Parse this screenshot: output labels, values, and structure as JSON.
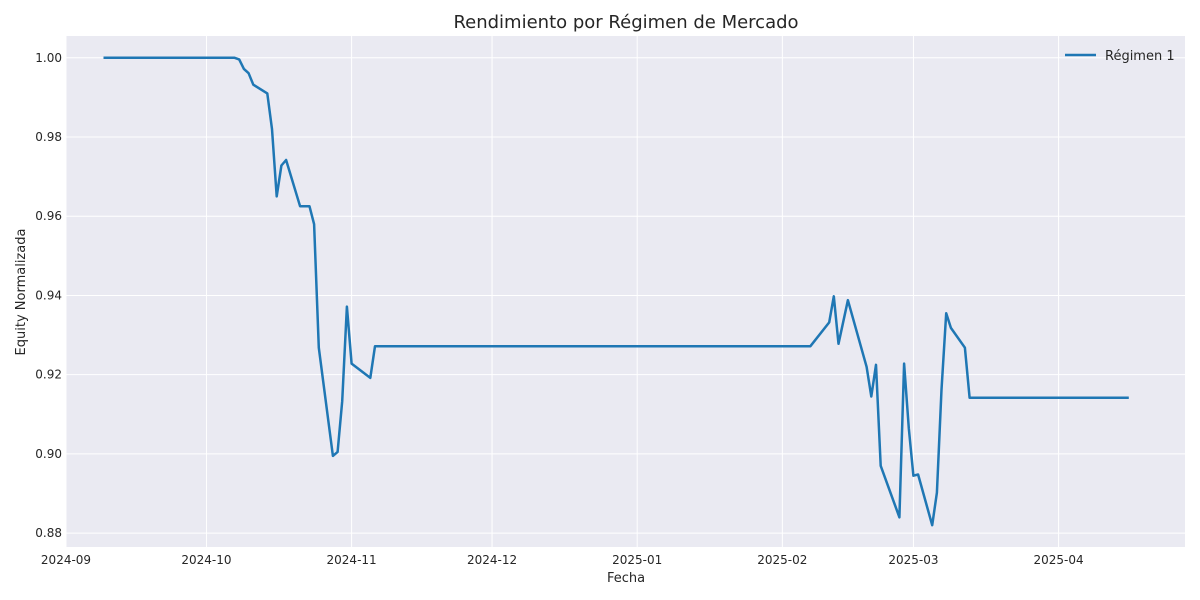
{
  "chart_data": {
    "type": "line",
    "title": "Rendimiento por Régimen de Mercado",
    "xlabel": "Fecha",
    "ylabel": "Equity Normalizada",
    "xlim": [
      "2024-09-01",
      "2025-04-28"
    ],
    "ylim": [
      0.8765,
      1.0055
    ],
    "x_ticks": [
      "2024-09-01",
      "2024-10-01",
      "2024-11-01",
      "2024-12-01",
      "2025-01-01",
      "2025-02-01",
      "2025-03-01",
      "2025-04-01"
    ],
    "x_tick_labels": [
      "2024-09",
      "2024-10",
      "2024-11",
      "2024-12",
      "2025-01",
      "2025-02",
      "2025-03",
      "2025-04"
    ],
    "y_ticks": [
      0.88,
      0.9,
      0.92,
      0.94,
      0.96,
      0.98,
      1.0
    ],
    "y_tick_labels": [
      "0.88",
      "0.90",
      "0.92",
      "0.94",
      "0.96",
      "0.98",
      "1.00"
    ],
    "grid": true,
    "legend_position": "top-right",
    "colors": {
      "background": "#eaeaf2",
      "grid": "#ffffff",
      "series": "#1f77b4"
    },
    "series": [
      {
        "name": "Régimen 1",
        "color": "#1f77b4",
        "points": [
          [
            "2024-09-09",
            1.0
          ],
          [
            "2024-10-07",
            1.0
          ],
          [
            "2024-10-08",
            0.9996
          ],
          [
            "2024-10-09",
            0.9972
          ],
          [
            "2024-10-10",
            0.9961
          ],
          [
            "2024-10-11",
            0.9932
          ],
          [
            "2024-10-14",
            0.991
          ],
          [
            "2024-10-15",
            0.982
          ],
          [
            "2024-10-16",
            0.965
          ],
          [
            "2024-10-17",
            0.9728
          ],
          [
            "2024-10-18",
            0.9742
          ],
          [
            "2024-10-21",
            0.9625
          ],
          [
            "2024-10-23",
            0.9625
          ],
          [
            "2024-10-24",
            0.958
          ],
          [
            "2024-10-25",
            0.9268
          ],
          [
            "2024-10-28",
            0.8995
          ],
          [
            "2024-10-29",
            0.9005
          ],
          [
            "2024-10-30",
            0.9133
          ],
          [
            "2024-10-31",
            0.9372
          ],
          [
            "2024-11-01",
            0.9228
          ],
          [
            "2024-11-05",
            0.9192
          ],
          [
            "2024-11-06",
            0.9272
          ],
          [
            "2025-02-07",
            0.9272
          ],
          [
            "2025-02-11",
            0.9332
          ],
          [
            "2025-02-12",
            0.9398
          ],
          [
            "2025-02-13",
            0.9278
          ],
          [
            "2025-02-15",
            0.9388
          ],
          [
            "2025-02-19",
            0.922
          ],
          [
            "2025-02-20",
            0.9145
          ],
          [
            "2025-02-21",
            0.9225
          ],
          [
            "2025-02-22",
            0.897
          ],
          [
            "2025-02-26",
            0.884
          ],
          [
            "2025-02-27",
            0.9228
          ],
          [
            "2025-02-28",
            0.9065
          ],
          [
            "2025-03-01",
            0.8945
          ],
          [
            "2025-03-02",
            0.8948
          ],
          [
            "2025-03-05",
            0.882
          ],
          [
            "2025-03-06",
            0.8902
          ],
          [
            "2025-03-07",
            0.9162
          ],
          [
            "2025-03-08",
            0.9355
          ],
          [
            "2025-03-09",
            0.9318
          ],
          [
            "2025-03-12",
            0.9268
          ],
          [
            "2025-03-13",
            0.9142
          ],
          [
            "2025-04-16",
            0.9142
          ]
        ]
      }
    ]
  }
}
